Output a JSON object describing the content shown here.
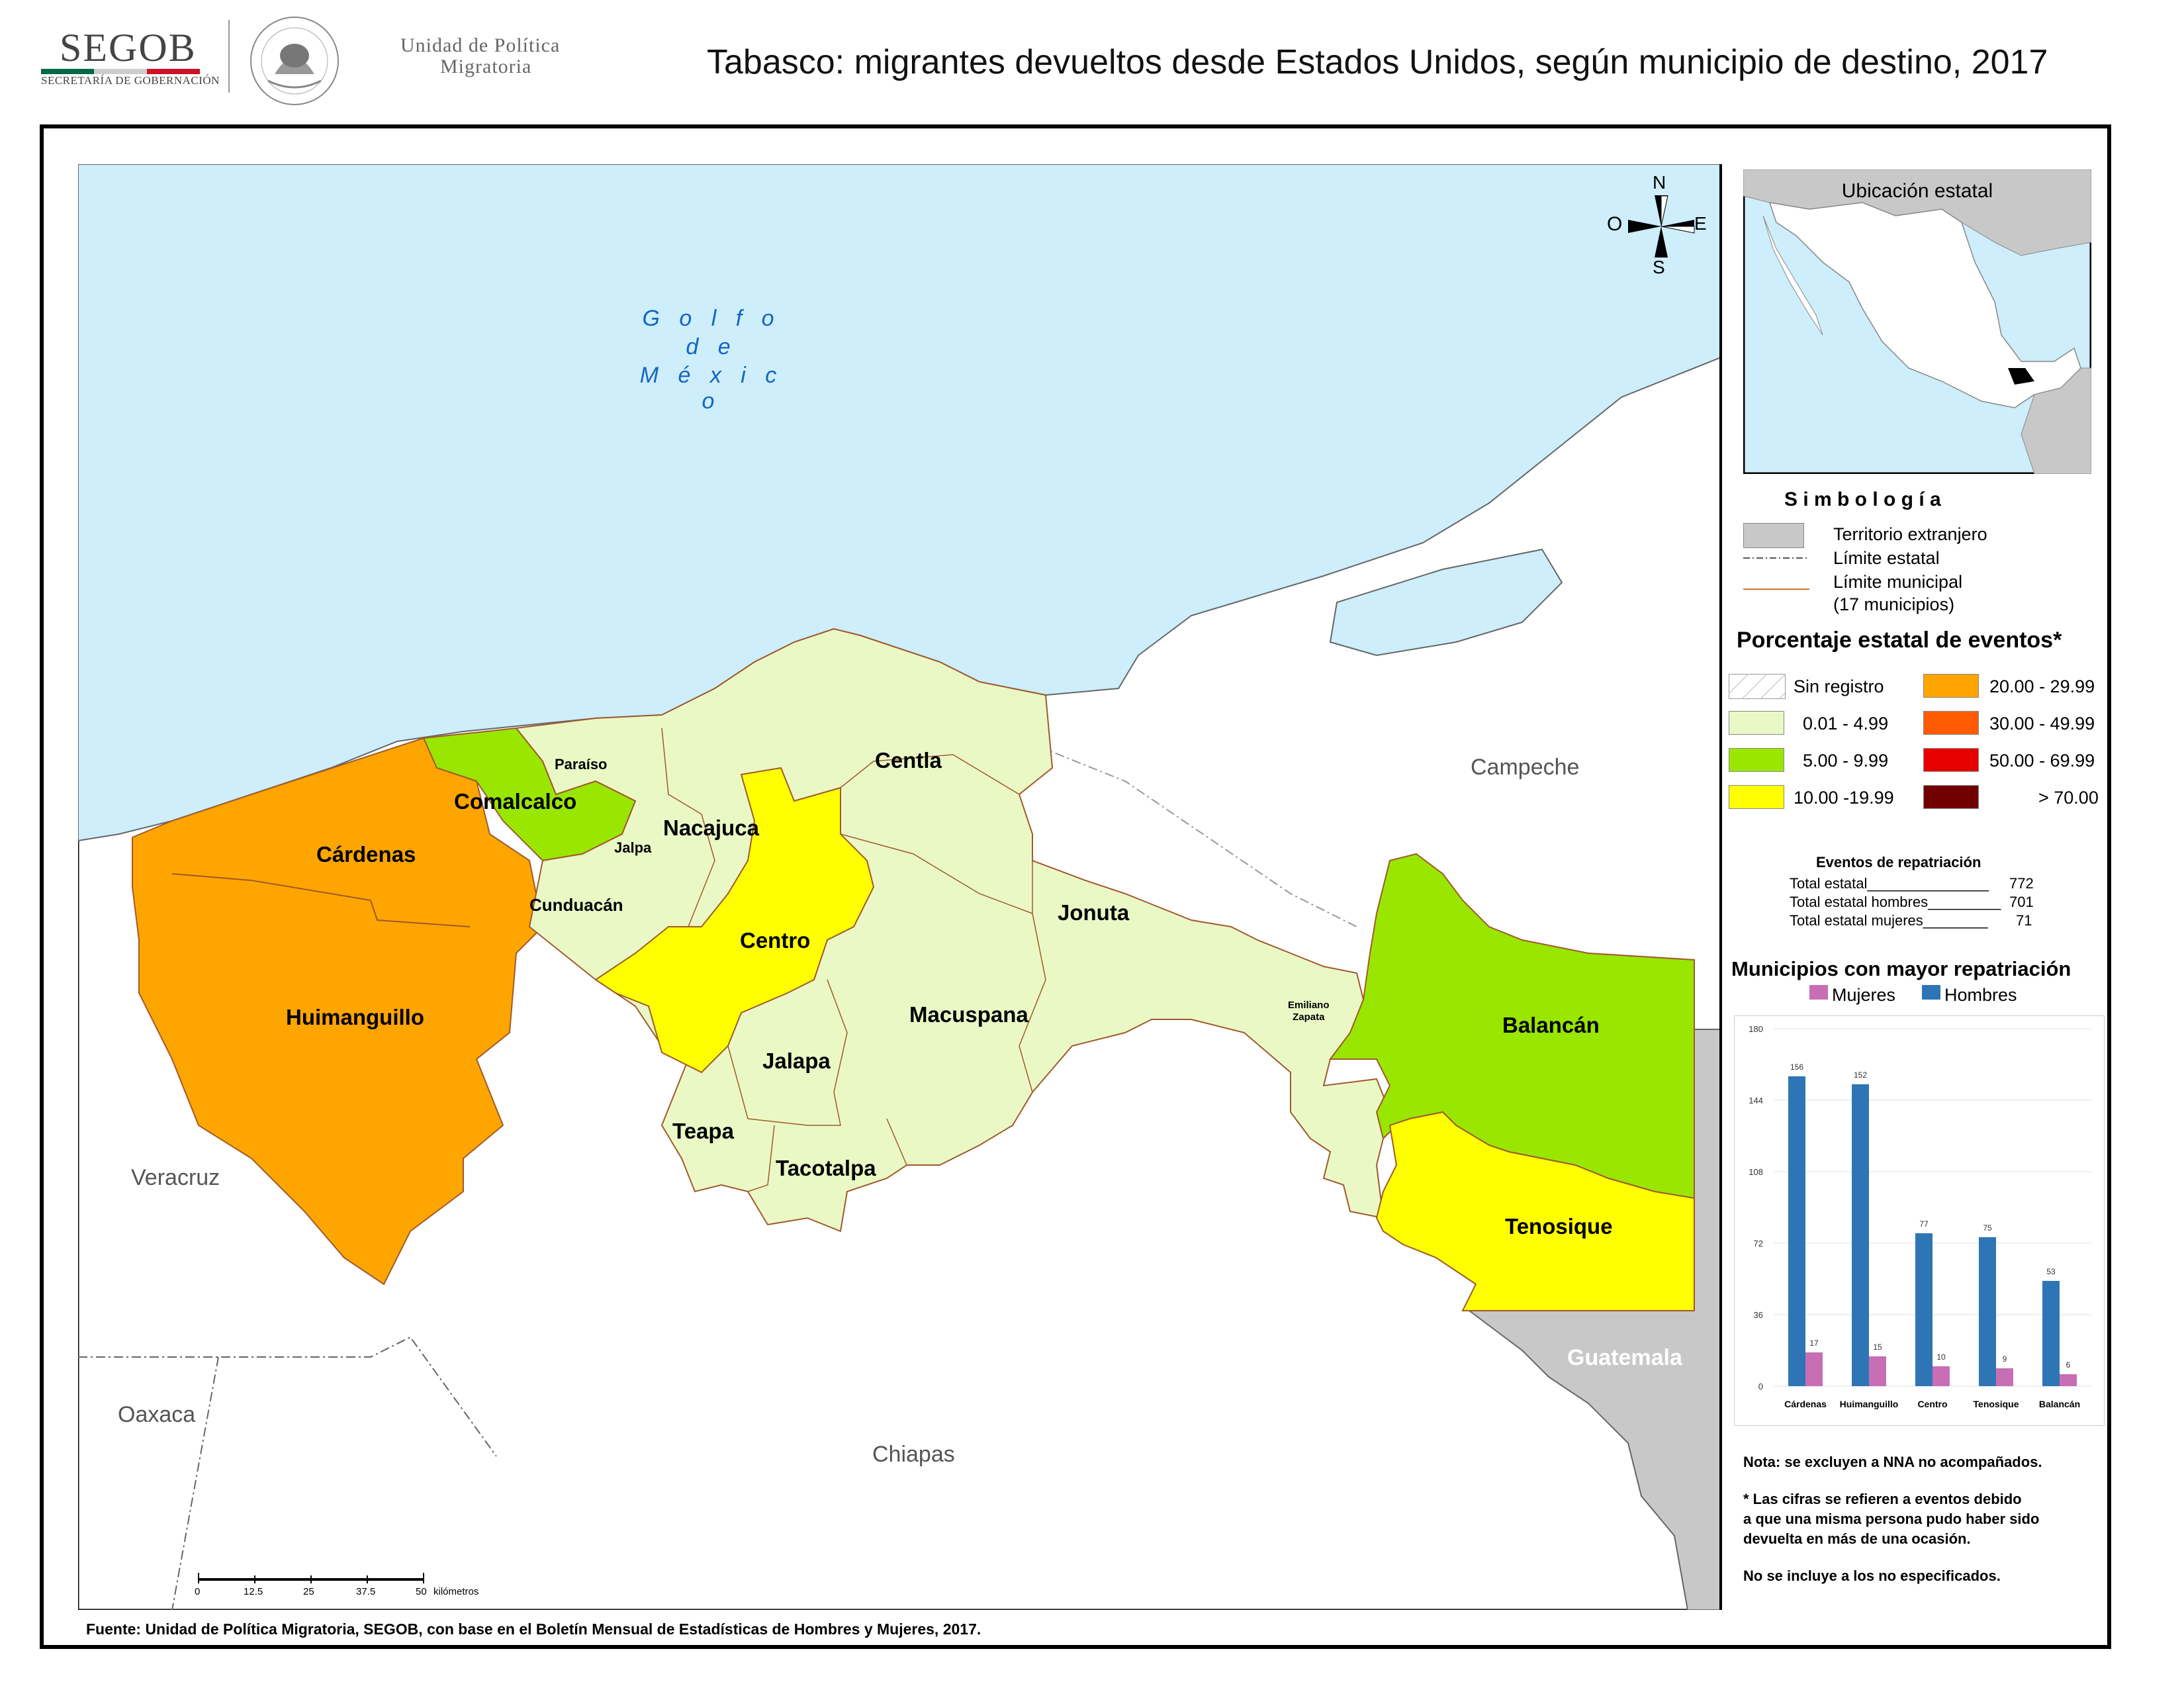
{
  "header": {
    "logo_text": "SEGOB",
    "logo_sub": "SECRETARÍA DE GOBERNACIÓN",
    "unit_line1": "Unidad de Política",
    "unit_line2": "Migratoria",
    "title": "Tabasco: migrantes devueltos desde Estados Unidos, según municipio de destino, 2017"
  },
  "map": {
    "sea_label": [
      "G o l f o",
      "d e",
      "M é x i c o"
    ],
    "compass": {
      "n": "N",
      "s": "S",
      "e": "E",
      "w": "O"
    },
    "neighbors": {
      "campeche": "Campeche",
      "veracruz": "Veracruz",
      "oaxaca": "Oaxaca",
      "chiapas": "Chiapas",
      "guatemala": "Guatemala"
    },
    "municipalities": [
      {
        "name": "Cárdenas",
        "class": "20.00 - 29.99"
      },
      {
        "name": "Huimanguillo",
        "class": "20.00 - 29.99"
      },
      {
        "name": "Comalcalco",
        "class": "5.00 - 9.99"
      },
      {
        "name": "Paraíso",
        "class": "0.01 - 4.99"
      },
      {
        "name": "Jalpa",
        "class": "0.01 - 4.99"
      },
      {
        "name": "Cunduacán",
        "class": "0.01 - 4.99"
      },
      {
        "name": "Nacajuca",
        "class": "0.01 - 4.99"
      },
      {
        "name": "Centla",
        "class": "0.01 - 4.99"
      },
      {
        "name": "Centro",
        "class": "10.00 -19.99"
      },
      {
        "name": "Jonuta",
        "class": "0.01 - 4.99"
      },
      {
        "name": "Macuspana",
        "class": "0.01 - 4.99"
      },
      {
        "name": "Jalapa",
        "class": "0.01 - 4.99"
      },
      {
        "name": "Teapa",
        "class": "0.01 - 4.99"
      },
      {
        "name": "Tacotalpa",
        "class": "0.01 - 4.99"
      },
      {
        "name": "Emiliano Zapata",
        "class": "0.01 - 4.99"
      },
      {
        "name": "Balancán",
        "class": "5.00 - 9.99"
      },
      {
        "name": "Tenosique",
        "class": "10.00 -19.99"
      }
    ],
    "emiliano_line1": "Emiliano",
    "emiliano_line2": "Zapata",
    "scale": {
      "ticks": [
        "0",
        "12.5",
        "25",
        "37.5",
        "50"
      ],
      "unit": "kilómetros"
    }
  },
  "inset": {
    "title": "Ubicación estatal"
  },
  "legend": {
    "title": "S i m b o l o g í a",
    "foreign": "Territorio extranjero",
    "state_limit": "Límite estatal",
    "muni_limit_1": "Límite municipal",
    "muni_limit_2": "(17 municipios)",
    "pct_title": "Porcentaje estatal de eventos*",
    "classes": [
      {
        "label": "Sin registro",
        "color": "#ffffff"
      },
      {
        "label": "0.01  - 4.99",
        "color": "#eaf8c6"
      },
      {
        "label": "5.00  - 9.99",
        "color": "#99e600"
      },
      {
        "label": "10.00 -19.99",
        "color": "#ffff00"
      },
      {
        "label": "20.00 - 29.99",
        "color": "#ffa500"
      },
      {
        "label": "30.00 - 49.99",
        "color": "#ff5a00"
      },
      {
        "label": "50.00 - 69.99",
        "color": "#e60000"
      },
      {
        "label": "> 70.00",
        "color": "#730000"
      }
    ]
  },
  "totals": {
    "title": "Eventos de repatriación",
    "rows": [
      {
        "label": "Total estatal_______________",
        "value": "772"
      },
      {
        "label": "Total estatal hombres_________",
        "value": "701"
      },
      {
        "label": "Total estatal mujeres________",
        "value": "71"
      }
    ]
  },
  "chart_data": {
    "type": "bar",
    "title": "Municipios con mayor repatriación",
    "categories": [
      "Cárdenas",
      "Huimanguillo",
      "Centro",
      "Tenosique",
      "Balancán"
    ],
    "series": [
      {
        "name": "Hombres",
        "values": [
          156,
          152,
          77,
          75,
          53
        ],
        "color": "#2e75b6"
      },
      {
        "name": "Mujeres",
        "values": [
          17,
          15,
          10,
          9,
          6
        ],
        "color": "#c86eb4"
      }
    ],
    "yticks": [
      "0",
      "36",
      "72",
      "108",
      "144",
      "180"
    ],
    "ylim": [
      0,
      180
    ],
    "legend": "top"
  },
  "notes": {
    "note1": "Nota: se excluyen a NNA no acompañados.",
    "note2a": "* Las cifras se refieren a eventos debido",
    "note2b": "a que una misma persona pudo haber sido",
    "note2c": "devuelta en más de una ocasión.",
    "note3": "No se incluye a los no especificados."
  },
  "source": "Fuente: Unidad de Política Migratoria, SEGOB, con base en el Boletín Mensual de Estadísticas de Hombres y Mujeres, 2017."
}
